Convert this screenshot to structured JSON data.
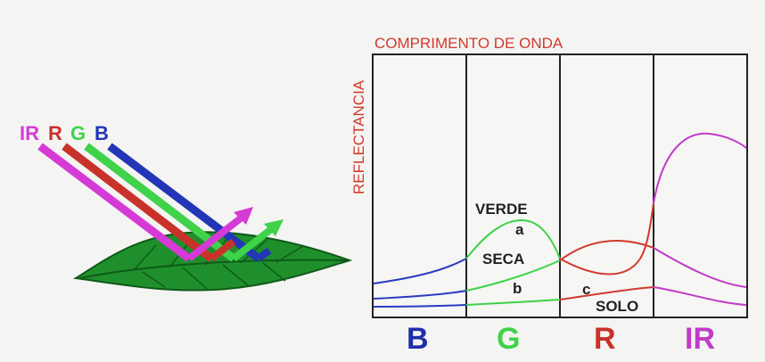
{
  "title": "COMPRIMENTO DE ONDA",
  "ylabel": "REFLECTANCIA",
  "rays": [
    {
      "label": "IR",
      "color": "#d63ad6"
    },
    {
      "label": "R",
      "color": "#c8322a"
    },
    {
      "label": "G",
      "color": "#3fd24a"
    },
    {
      "label": "B",
      "color": "#2336b8"
    }
  ],
  "bands": [
    {
      "label": "B",
      "color": "#1f2fa8"
    },
    {
      "label": "G",
      "color": "#3fd24a"
    },
    {
      "label": "R",
      "color": "#c8322a"
    },
    {
      "label": "IR",
      "color": "#c23ac8"
    }
  ],
  "curve_labels": {
    "verde": "VERDE",
    "a": "a",
    "seca": "SECA",
    "b": "b",
    "c": "c",
    "solo": "SOLO"
  },
  "colors": {
    "leaf": "#1f8f2c",
    "leaf_vein": "#0f5a18",
    "frame": "#222222",
    "title": "#d2392d"
  }
}
